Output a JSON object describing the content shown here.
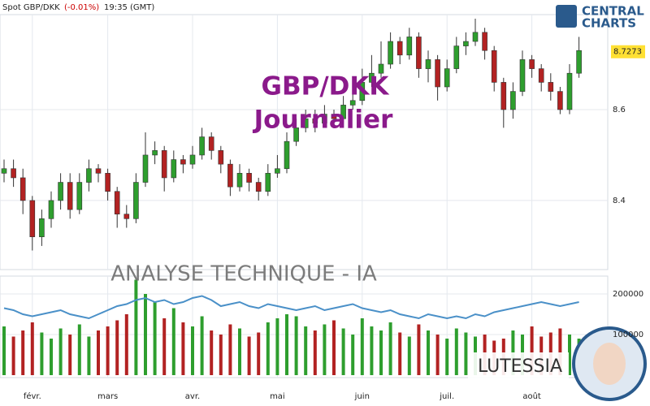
{
  "header": {
    "instrument": "Spot GBP/DKK",
    "change": "(-0.01%)",
    "time": "19:35 (GMT)"
  },
  "logo": {
    "line1": "CENTRAL",
    "line2": "CHARTS"
  },
  "watermark": "ANALYSE TECHNIQUE - IA",
  "badge": "LUTESSIA",
  "chart_data": {
    "type": "candlestick",
    "title": "GBP/DKK",
    "subtitle": "Journalier",
    "categories": [
      null,
      null,
      null,
      "févr.",
      null,
      null,
      null,
      null,
      null,
      null,
      null,
      "mars",
      null,
      null,
      null,
      null,
      null,
      null,
      null,
      null,
      "avr.",
      null,
      null,
      null,
      null,
      null,
      null,
      null,
      null,
      "mai",
      null,
      null,
      null,
      null,
      null,
      null,
      null,
      null,
      "juin",
      null,
      null,
      null,
      null,
      null,
      null,
      null,
      null,
      "juil.",
      null,
      null,
      null,
      null,
      null,
      null,
      null,
      null,
      "août",
      null,
      null,
      null,
      null,
      null
    ],
    "open": [
      8.46,
      8.47,
      8.45,
      8.4,
      8.32,
      8.36,
      8.4,
      8.44,
      8.38,
      8.44,
      8.47,
      8.46,
      8.42,
      8.37,
      8.36,
      8.44,
      8.5,
      8.51,
      8.45,
      8.49,
      8.48,
      8.5,
      8.54,
      8.51,
      8.48,
      8.43,
      8.46,
      8.44,
      8.42,
      8.46,
      8.47,
      8.53,
      8.56,
      8.58,
      8.57,
      8.59,
      8.58,
      8.61,
      8.62,
      8.66,
      8.68,
      8.7,
      8.75,
      8.72,
      8.76,
      8.69,
      8.71,
      8.65,
      8.69,
      8.74,
      8.75,
      8.77,
      8.73,
      8.66,
      8.6,
      8.64,
      8.71,
      8.69,
      8.66,
      8.64,
      8.6,
      8.68
    ],
    "high": [
      8.49,
      8.49,
      8.47,
      8.41,
      8.38,
      8.42,
      8.46,
      8.46,
      8.46,
      8.49,
      8.48,
      8.47,
      8.43,
      8.39,
      8.46,
      8.55,
      8.53,
      8.52,
      8.51,
      8.5,
      8.52,
      8.56,
      8.55,
      8.52,
      8.49,
      8.48,
      8.47,
      8.45,
      8.48,
      8.5,
      8.55,
      8.58,
      8.6,
      8.6,
      8.61,
      8.6,
      8.63,
      8.64,
      8.69,
      8.72,
      8.75,
      8.77,
      8.76,
      8.78,
      8.77,
      8.73,
      8.72,
      8.71,
      8.76,
      8.77,
      8.8,
      8.78,
      8.74,
      8.67,
      8.66,
      8.73,
      8.72,
      8.7,
      8.68,
      8.65,
      8.7,
      8.76
    ],
    "low": [
      8.44,
      8.43,
      8.37,
      8.29,
      8.3,
      8.34,
      8.38,
      8.36,
      8.37,
      8.42,
      8.44,
      8.4,
      8.34,
      8.34,
      8.35,
      8.43,
      8.48,
      8.42,
      8.44,
      8.46,
      8.47,
      8.49,
      8.49,
      8.46,
      8.41,
      8.42,
      8.42,
      8.4,
      8.41,
      8.45,
      8.46,
      8.52,
      8.55,
      8.55,
      8.56,
      8.56,
      8.57,
      8.6,
      8.61,
      8.65,
      8.67,
      8.69,
      8.7,
      8.71,
      8.67,
      8.66,
      8.62,
      8.64,
      8.68,
      8.72,
      8.74,
      8.71,
      8.64,
      8.56,
      8.58,
      8.63,
      8.67,
      8.64,
      8.62,
      8.59,
      8.59,
      8.67
    ],
    "close": [
      8.47,
      8.45,
      8.4,
      8.32,
      8.36,
      8.4,
      8.44,
      8.38,
      8.44,
      8.47,
      8.46,
      8.42,
      8.37,
      8.36,
      8.44,
      8.5,
      8.51,
      8.45,
      8.49,
      8.48,
      8.5,
      8.54,
      8.51,
      8.48,
      8.43,
      8.46,
      8.44,
      8.42,
      8.46,
      8.47,
      8.53,
      8.56,
      8.58,
      8.57,
      8.59,
      8.58,
      8.61,
      8.62,
      8.66,
      8.68,
      8.7,
      8.75,
      8.72,
      8.76,
      8.69,
      8.71,
      8.65,
      8.69,
      8.74,
      8.75,
      8.77,
      8.73,
      8.66,
      8.6,
      8.64,
      8.71,
      8.69,
      8.66,
      8.64,
      8.6,
      8.68,
      8.73
    ],
    "up_color": "#2e9e2e",
    "down_color": "#b22222",
    "last_price": 8.7273,
    "ylim": [
      8.248,
      8.809
    ],
    "yticks": [
      8.4,
      8.6
    ],
    "grid": true,
    "volume": [
      120000,
      95000,
      110000,
      130000,
      105000,
      90000,
      115000,
      100000,
      125000,
      95000,
      110000,
      120000,
      135000,
      150000,
      235000,
      200000,
      180000,
      140000,
      165000,
      130000,
      120000,
      145000,
      110000,
      100000,
      125000,
      115000,
      95000,
      105000,
      130000,
      140000,
      150000,
      145000,
      120000,
      110000,
      125000,
      135000,
      115000,
      100000,
      140000,
      120000,
      110000,
      130000,
      105000,
      95000,
      125000,
      110000,
      100000,
      90000,
      115000,
      105000,
      95000,
      100000,
      85000,
      90000,
      110000,
      100000,
      120000,
      95000,
      105000,
      115000,
      100000,
      90000
    ],
    "volume_average": [
      165000,
      160000,
      150000,
      145000,
      150000,
      155000,
      160000,
      150000,
      145000,
      140000,
      150000,
      160000,
      170000,
      175000,
      185000,
      190000,
      180000,
      185000,
      175000,
      180000,
      190000,
      195000,
      185000,
      170000,
      175000,
      180000,
      170000,
      165000,
      175000,
      170000,
      165000,
      160000,
      165000,
      170000,
      160000,
      165000,
      170000,
      175000,
      165000,
      160000,
      155000,
      160000,
      150000,
      145000,
      140000,
      150000,
      145000,
      140000,
      145000,
      140000,
      150000,
      145000,
      155000,
      160000,
      165000,
      170000,
      175000,
      180000,
      175000,
      170000,
      175000,
      180000
    ],
    "volume_average_color": "#4a90c8",
    "volume_ylim": [
      -6000,
      244000
    ],
    "volume_yticks": [
      100000,
      200000
    ]
  }
}
